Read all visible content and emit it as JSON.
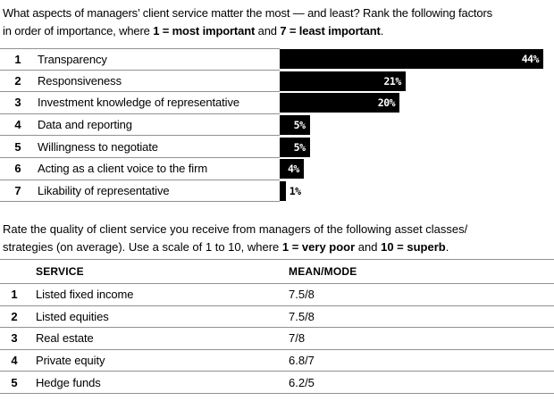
{
  "page": {
    "background": "#ffffff",
    "text_color": "#000000",
    "line_color": "#919191",
    "bar_color": "#000000"
  },
  "questions": {
    "q1": {
      "line1": "What aspects of managers’ client service matter the most — and least? Rank the following factors",
      "line2_before": "in order of importance, where ",
      "bold_1": "1 = most important",
      "line2_mid": " and ",
      "bold_2": "7 = least important",
      "line2_after": "."
    },
    "q2": {
      "line1": "Rate the quality of client service you receive from managers of the following asset classes/",
      "line2_before": "strategies (on average). Use a scale of 1 to 10, where ",
      "bold_1": "1 = very poor",
      "line2_mid": " and ",
      "bold_2": "10 = superb",
      "line2_after": "."
    }
  },
  "chart_data": [
    {
      "type": "bar",
      "orientation": "horizontal",
      "title": "What aspects of managers’ client service matter the most — and least? Rank the following factors in order of importance, where 1 = most important and 7 = least important.",
      "categories": [
        "Transparency",
        "Responsiveness",
        "Investment knowledge of representative",
        "Data and reporting",
        "Willingness to negotiate",
        "Acting as a client voice to the firm",
        "Likability of representative"
      ],
      "values": [
        44,
        21,
        20,
        5,
        5,
        4,
        1
      ],
      "value_unit": "%",
      "xlim": [
        0,
        44
      ],
      "max_value": 44,
      "bar_color": "#000000",
      "grid": false,
      "legend": false,
      "rows": [
        {
          "rank": "1",
          "label": "Transparency",
          "value": 44,
          "value_label": "44%",
          "value_label_inside": true
        },
        {
          "rank": "2",
          "label": "Responsiveness",
          "value": 21,
          "value_label": "21%",
          "value_label_inside": true
        },
        {
          "rank": "3",
          "label": "Investment knowledge of representative",
          "value": 20,
          "value_label": "20%",
          "value_label_inside": true
        },
        {
          "rank": "4",
          "label": "Data and reporting",
          "value": 5,
          "value_label": "5%",
          "value_label_inside": true
        },
        {
          "rank": "5",
          "label": "Willingness to negotiate",
          "value": 5,
          "value_label": "5%",
          "value_label_inside": true
        },
        {
          "rank": "6",
          "label": "Acting as a client voice to the firm",
          "value": 4,
          "value_label": "4%",
          "value_label_inside": true
        },
        {
          "rank": "7",
          "label": "Likability of representative",
          "value": 1,
          "value_label": "1%",
          "value_label_inside": false
        }
      ]
    },
    {
      "type": "table",
      "title": "Rate the quality of client service you receive from managers of the following asset classes/strategies (on average). Use a scale of 1 to 10, where 1 = very poor and 10 = superb.",
      "columns": [
        "SERVICE",
        "MEAN/MODE"
      ],
      "rows": [
        {
          "num": "1",
          "service": "Listed fixed income",
          "mean_mode": "7.5/8"
        },
        {
          "num": "2",
          "service": "Listed equities",
          "mean_mode": "7.5/8"
        },
        {
          "num": "3",
          "service": "Real estate",
          "mean_mode": "7/8"
        },
        {
          "num": "4",
          "service": "Private equity",
          "mean_mode": "6.8/7"
        },
        {
          "num": "5",
          "service": "Hedge funds",
          "mean_mode": "6.2/5"
        }
      ]
    }
  ]
}
